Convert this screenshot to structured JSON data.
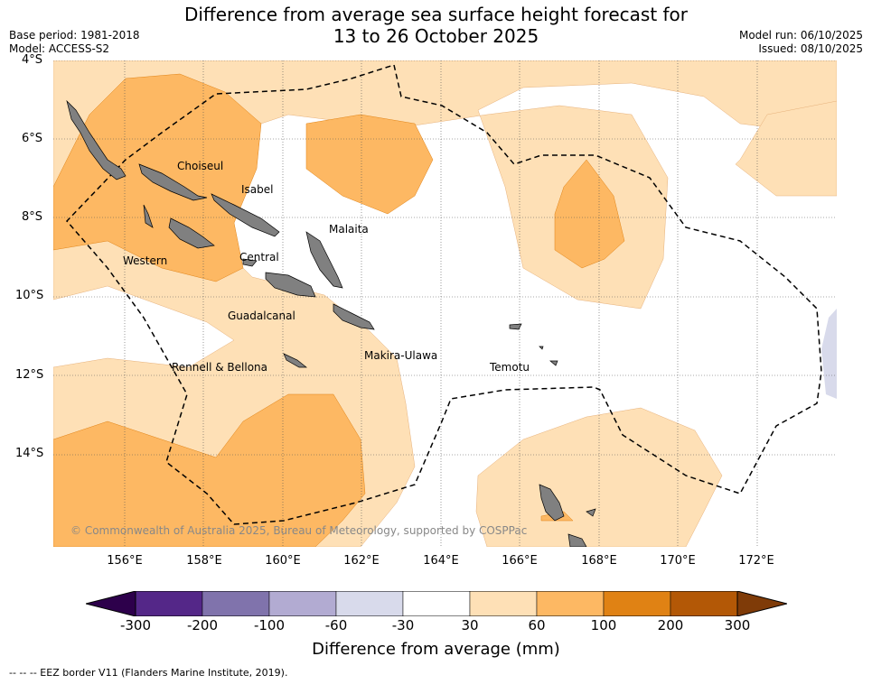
{
  "title_line1": "Difference from average sea surface height forecast for",
  "title_line2": "13 to 26 October 2025",
  "base_period": "Base period: 1981-2018",
  "model": "Model: ACCESS-S2",
  "model_run": "Model run: 06/10/2025",
  "issued": "Issued: 08/10/2025",
  "lat_ticks": [
    "4°S",
    "6°S",
    "8°S",
    "10°S",
    "12°S",
    "14°S"
  ],
  "lon_ticks": [
    "156°E",
    "158°E",
    "160°E",
    "162°E",
    "164°E",
    "166°E",
    "168°E",
    "170°E",
    "172°E"
  ],
  "provinces": [
    "Choiseul",
    "Isabel",
    "Malaita",
    "Western",
    "Central",
    "Guadalcanal",
    "Makira-Ulawa",
    "Rennell & Bellona",
    "Temotu"
  ],
  "copyright": "© Commonwealth of Australia 2025, Bureau of Meteorology, supported by COSPPac",
  "colorbar": {
    "labels": [
      "-300",
      "-200",
      "-100",
      "-60",
      "-30",
      "30",
      "60",
      "100",
      "200",
      "300"
    ],
    "colors": [
      "#542788",
      "#8073ac",
      "#b2abd2",
      "#d8daeb",
      "#ffffff",
      "#fee0b6",
      "#fdb863",
      "#e08214",
      "#b35806"
    ],
    "low_extend": "#2d004b",
    "high_extend": "#7f3b08",
    "title": "Difference from average (mm)"
  },
  "legend_footer": "--  --  -- EEZ border V11 (Flanders Marine Institute, 2019)."
}
